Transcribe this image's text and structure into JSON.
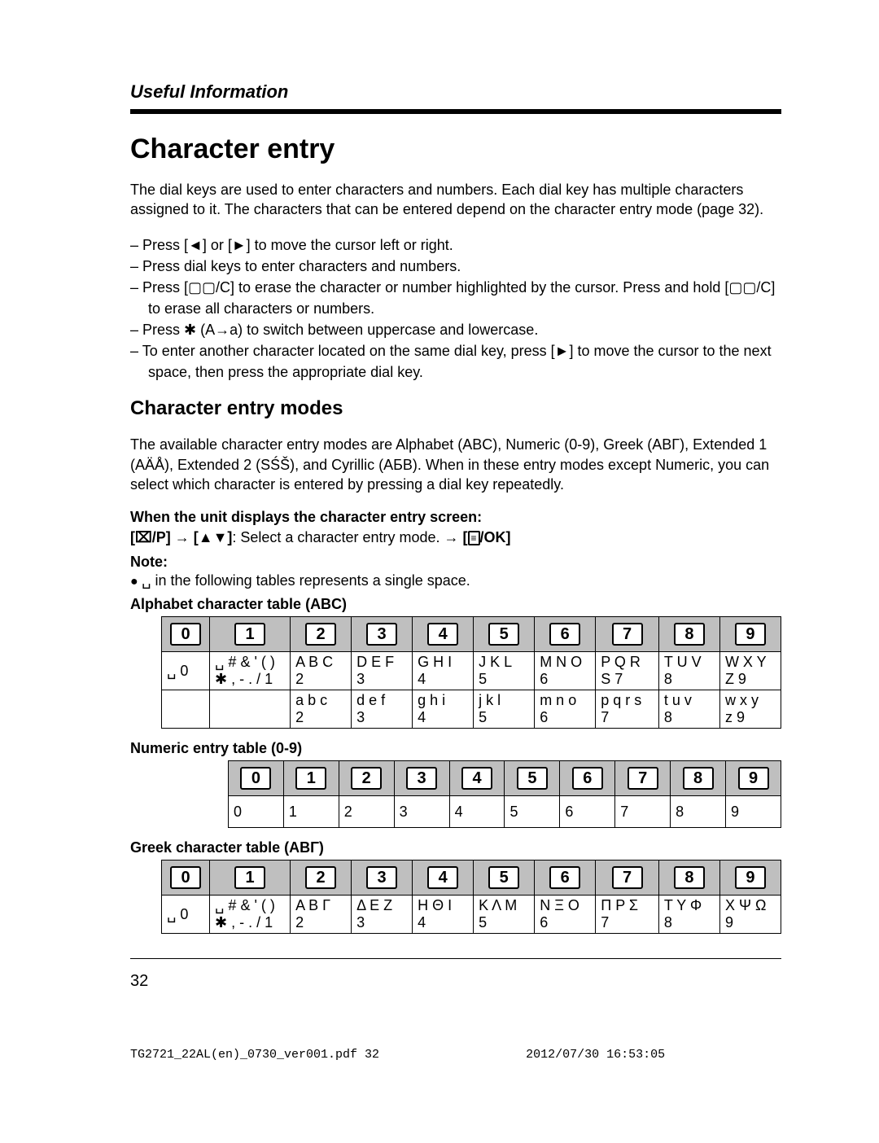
{
  "header": {
    "section": "Useful Information"
  },
  "title": "Character entry",
  "intro": "The dial keys are used to enter characters and numbers. Each dial key has multiple characters assigned to it. The characters that can be entered depend on the character entry mode (page 32).",
  "bullets": [
    "Press [◄] or [►] to move the cursor left or right.",
    "Press dial keys to enter characters and numbers.",
    "Press [▢▢/C] to erase the character or number highlighted by the cursor. Press and hold [▢▢/C] to erase all characters or numbers.",
    "Press ✱ (A→a) to switch between uppercase and lowercase.",
    "To enter another character located on the same dial key, press [►] to move the cursor to the next space, then press the appropriate dial key."
  ],
  "modes": {
    "heading": "Character entry modes",
    "para": "The available character entry modes are Alphabet (ABC), Numeric (0-9), Greek (ΑΒΓ), Extended 1 (AÄÅ), Extended 2 (SŚŠ), and Cyrillic (АБВ). When in these entry modes except Numeric, you can select which character is entered by pressing a dial key repeatedly.",
    "when_line": "When the unit displays the character entry screen:",
    "select_line": "[⌧/P] → [▲▼]: Select a character entry mode. → [▤/OK]",
    "note_label": "Note:",
    "note_item": "␣ in the following tables represents a single space."
  },
  "key_headers": [
    "0",
    "1",
    "2",
    "3",
    "4",
    "5",
    "6",
    "7",
    "8",
    "9"
  ],
  "alpha": {
    "caption": "Alphabet character table (ABC)",
    "rows": [
      [
        "␣ 0",
        "␣ # & ' ( )\n✱ , - . / 1",
        "A B C\n2",
        "D E F\n3",
        "G H I\n4",
        "J K L\n5",
        "M N O\n6",
        "P Q R\nS 7",
        "T U V\n8",
        "W X Y\nZ 9"
      ],
      [
        "",
        "",
        "a b c\n2",
        "d e f\n3",
        "g h i\n4",
        "j k l\n5",
        "m n o\n6",
        "p q r s\n7",
        "t u v\n8",
        "w x y\nz 9"
      ]
    ]
  },
  "numeric": {
    "caption": "Numeric entry table (0-9)",
    "row": [
      "0",
      "1",
      "2",
      "3",
      "4",
      "5",
      "6",
      "7",
      "8",
      "9"
    ]
  },
  "greek": {
    "caption": "Greek character table (ΑΒΓ)",
    "row": [
      "␣ 0",
      "␣ # & ' ( )\n✱ , - . / 1",
      "Α Β Γ\n2",
      "Δ Ε Ζ\n3",
      "Η Θ Ι\n4",
      "Κ Λ Μ\n5",
      "Ν Ξ Ο\n6",
      "Π Ρ Σ\n7",
      "Τ Υ Φ\n8",
      "Χ Ψ Ω\n9"
    ]
  },
  "page_number": "32",
  "footer": {
    "left": "TG2721_22AL(en)_0730_ver001.pdf   32",
    "right": "2012/07/30   16:53:05"
  }
}
